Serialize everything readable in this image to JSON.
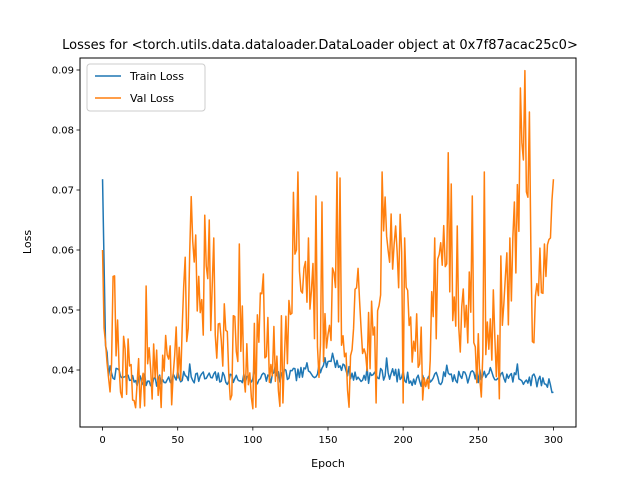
{
  "chart_data": {
    "type": "line",
    "title": "Losses for <torch.utils.data.dataloader.DataLoader object at 0x7f87acac25c0>",
    "xlabel": "Epoch",
    "ylabel": "Loss",
    "xlim": [
      -15,
      315
    ],
    "ylim": [
      0.0305,
      0.092
    ],
    "xticks": [
      0,
      50,
      100,
      150,
      200,
      250,
      300
    ],
    "yticks": [
      0.04,
      0.05,
      0.06,
      0.07,
      0.08,
      0.09
    ],
    "ytick_labels": [
      "0.04",
      "0.05",
      "0.06",
      "0.07",
      "0.08",
      "0.09"
    ],
    "grid": false,
    "legend_position": "upper-left",
    "series": [
      {
        "name": "Train Loss",
        "color": "#1f77b4",
        "seed": 7,
        "anchors": [
          [
            0,
            0.0718
          ],
          [
            2,
            0.044
          ],
          [
            4,
            0.04
          ],
          [
            6,
            0.0398
          ],
          [
            10,
            0.039
          ],
          [
            20,
            0.0383
          ],
          [
            40,
            0.0382
          ],
          [
            58,
            0.039
          ],
          [
            80,
            0.0386
          ],
          [
            100,
            0.0385
          ],
          [
            120,
            0.039
          ],
          [
            140,
            0.0396
          ],
          [
            153,
            0.0418
          ],
          [
            170,
            0.0385
          ],
          [
            190,
            0.0395
          ],
          [
            210,
            0.0382
          ],
          [
            230,
            0.0388
          ],
          [
            250,
            0.039
          ],
          [
            270,
            0.0388
          ],
          [
            290,
            0.0382
          ],
          [
            298,
            0.0378
          ],
          [
            300,
            0.036
          ]
        ],
        "spikes": [
          [
            10,
            0.0402
          ],
          [
            58,
            0.041
          ],
          [
            101,
            0.0406
          ],
          [
            115,
            0.0408
          ],
          [
            136,
            0.0412
          ],
          [
            153,
            0.0428
          ],
          [
            176,
            0.0404
          ],
          [
            189,
            0.042
          ],
          [
            229,
            0.0408
          ],
          [
            258,
            0.0404
          ],
          [
            276,
            0.041
          ]
        ],
        "noise": 0.0011,
        "min": 0.036
      },
      {
        "name": "Val Loss",
        "color": "#ff7f0e",
        "seed": 21,
        "anchors": [
          [
            0,
            0.06
          ],
          [
            1,
            0.047
          ],
          [
            3,
            0.042
          ],
          [
            5,
            0.039
          ],
          [
            8,
            0.05
          ],
          [
            10,
            0.044
          ],
          [
            15,
            0.039
          ],
          [
            25,
            0.038
          ],
          [
            35,
            0.042
          ],
          [
            45,
            0.04
          ],
          [
            55,
            0.048
          ],
          [
            60,
            0.056
          ],
          [
            65,
            0.052
          ],
          [
            70,
            0.054
          ],
          [
            78,
            0.046
          ],
          [
            85,
            0.042
          ],
          [
            90,
            0.048
          ],
          [
            95,
            0.043
          ],
          [
            100,
            0.04
          ],
          [
            105,
            0.048
          ],
          [
            110,
            0.042
          ],
          [
            115,
            0.04
          ],
          [
            120,
            0.042
          ],
          [
            125,
            0.05
          ],
          [
            130,
            0.062
          ],
          [
            135,
            0.056
          ],
          [
            140,
            0.052
          ],
          [
            145,
            0.042
          ],
          [
            150,
            0.048
          ],
          [
            155,
            0.056
          ],
          [
            160,
            0.046
          ],
          [
            165,
            0.042
          ],
          [
            170,
            0.05
          ],
          [
            175,
            0.042
          ],
          [
            180,
            0.048
          ],
          [
            185,
            0.06
          ],
          [
            190,
            0.064
          ],
          [
            195,
            0.058
          ],
          [
            200,
            0.06
          ],
          [
            205,
            0.042
          ],
          [
            210,
            0.046
          ],
          [
            215,
            0.042
          ],
          [
            220,
            0.048
          ],
          [
            225,
            0.056
          ],
          [
            230,
            0.062
          ],
          [
            235,
            0.05
          ],
          [
            240,
            0.046
          ],
          [
            245,
            0.056
          ],
          [
            250,
            0.042
          ],
          [
            255,
            0.04
          ],
          [
            260,
            0.046
          ],
          [
            265,
            0.046
          ],
          [
            270,
            0.054
          ],
          [
            275,
            0.062
          ],
          [
            279,
            0.076
          ],
          [
            283,
            0.07
          ],
          [
            287,
            0.044
          ],
          [
            291,
            0.054
          ],
          [
            295,
            0.058
          ],
          [
            298,
            0.06
          ],
          [
            300,
            0.0718
          ]
        ],
        "spikes": [
          [
            7,
            0.0556
          ],
          [
            29,
            0.054
          ],
          [
            55,
            0.0588
          ],
          [
            59,
            0.0689
          ],
          [
            62,
            0.0625
          ],
          [
            68,
            0.0658
          ],
          [
            71,
            0.065
          ],
          [
            74,
            0.062
          ],
          [
            91,
            0.061
          ],
          [
            107,
            0.056
          ],
          [
            127,
            0.0696
          ],
          [
            130,
            0.073
          ],
          [
            137,
            0.062
          ],
          [
            142,
            0.069
          ],
          [
            146,
            0.068
          ],
          [
            156,
            0.073
          ],
          [
            158,
            0.072
          ],
          [
            186,
            0.073
          ],
          [
            192,
            0.066
          ],
          [
            195,
            0.064
          ],
          [
            201,
            0.062
          ],
          [
            221,
            0.062
          ],
          [
            230,
            0.0762
          ],
          [
            232,
            0.071
          ],
          [
            236,
            0.064
          ],
          [
            246,
            0.069
          ],
          [
            254,
            0.073
          ],
          [
            265,
            0.059
          ],
          [
            271,
            0.062
          ],
          [
            274,
            0.068
          ],
          [
            278,
            0.087
          ],
          [
            281,
            0.0899
          ],
          [
            284,
            0.083
          ],
          [
            294,
            0.061
          ],
          [
            298,
            0.062
          ],
          [
            300,
            0.0718
          ]
        ],
        "dips": [
          [
            20,
            0.035
          ],
          [
            25,
            0.0337
          ],
          [
            28,
            0.034
          ],
          [
            46,
            0.0342
          ],
          [
            86,
            0.0358
          ],
          [
            102,
            0.0338
          ],
          [
            120,
            0.0345
          ],
          [
            164,
            0.0338
          ],
          [
            182,
            0.0345
          ],
          [
            200,
            0.0345
          ],
          [
            213,
            0.035
          ],
          [
            252,
            0.0355
          ],
          [
            264,
            0.0352
          ],
          [
            284,
            0.0338
          ]
        ],
        "noise": 0.0075,
        "min": 0.0335
      }
    ]
  }
}
